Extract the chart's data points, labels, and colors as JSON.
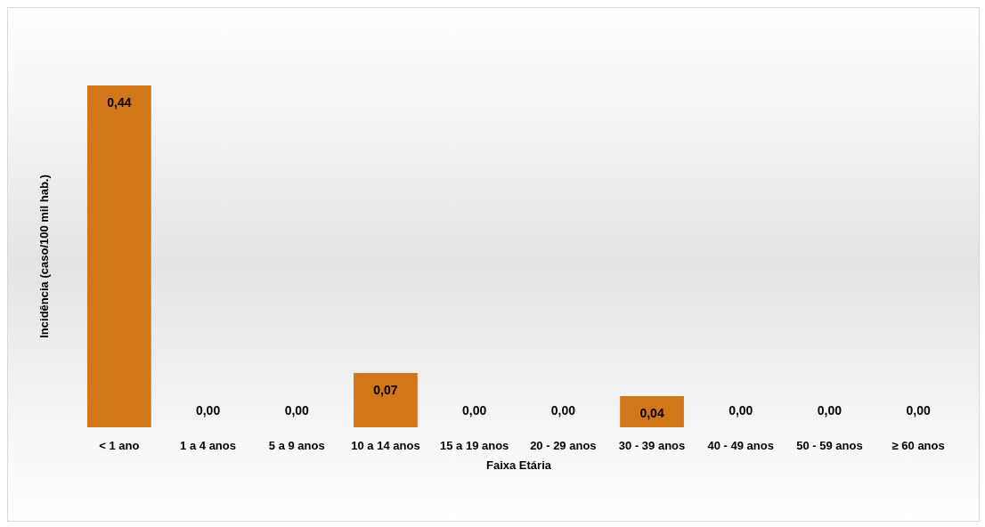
{
  "chart_data": {
    "type": "bar",
    "xlabel": "Faixa Etária",
    "ylabel": "Incidência (caso/100 mil hab.)",
    "categories": [
      "< 1 ano",
      "1 a 4 anos",
      "5 a 9 anos",
      "10 a 14 anos",
      "15 a 19 anos",
      "20 - 29 anos",
      "30 - 39 anos",
      "40 - 49 anos",
      "50 - 59 anos",
      "≥ 60 anos"
    ],
    "values": [
      0.44,
      0,
      0,
      0.07,
      0,
      0,
      0.04,
      0,
      0,
      0
    ],
    "value_labels": [
      "0,44",
      "0,00",
      "0,00",
      "0,07",
      "0,00",
      "0,00",
      "0,04",
      "0,00",
      "0,00",
      "0,00"
    ],
    "color": "#d2761a"
  }
}
